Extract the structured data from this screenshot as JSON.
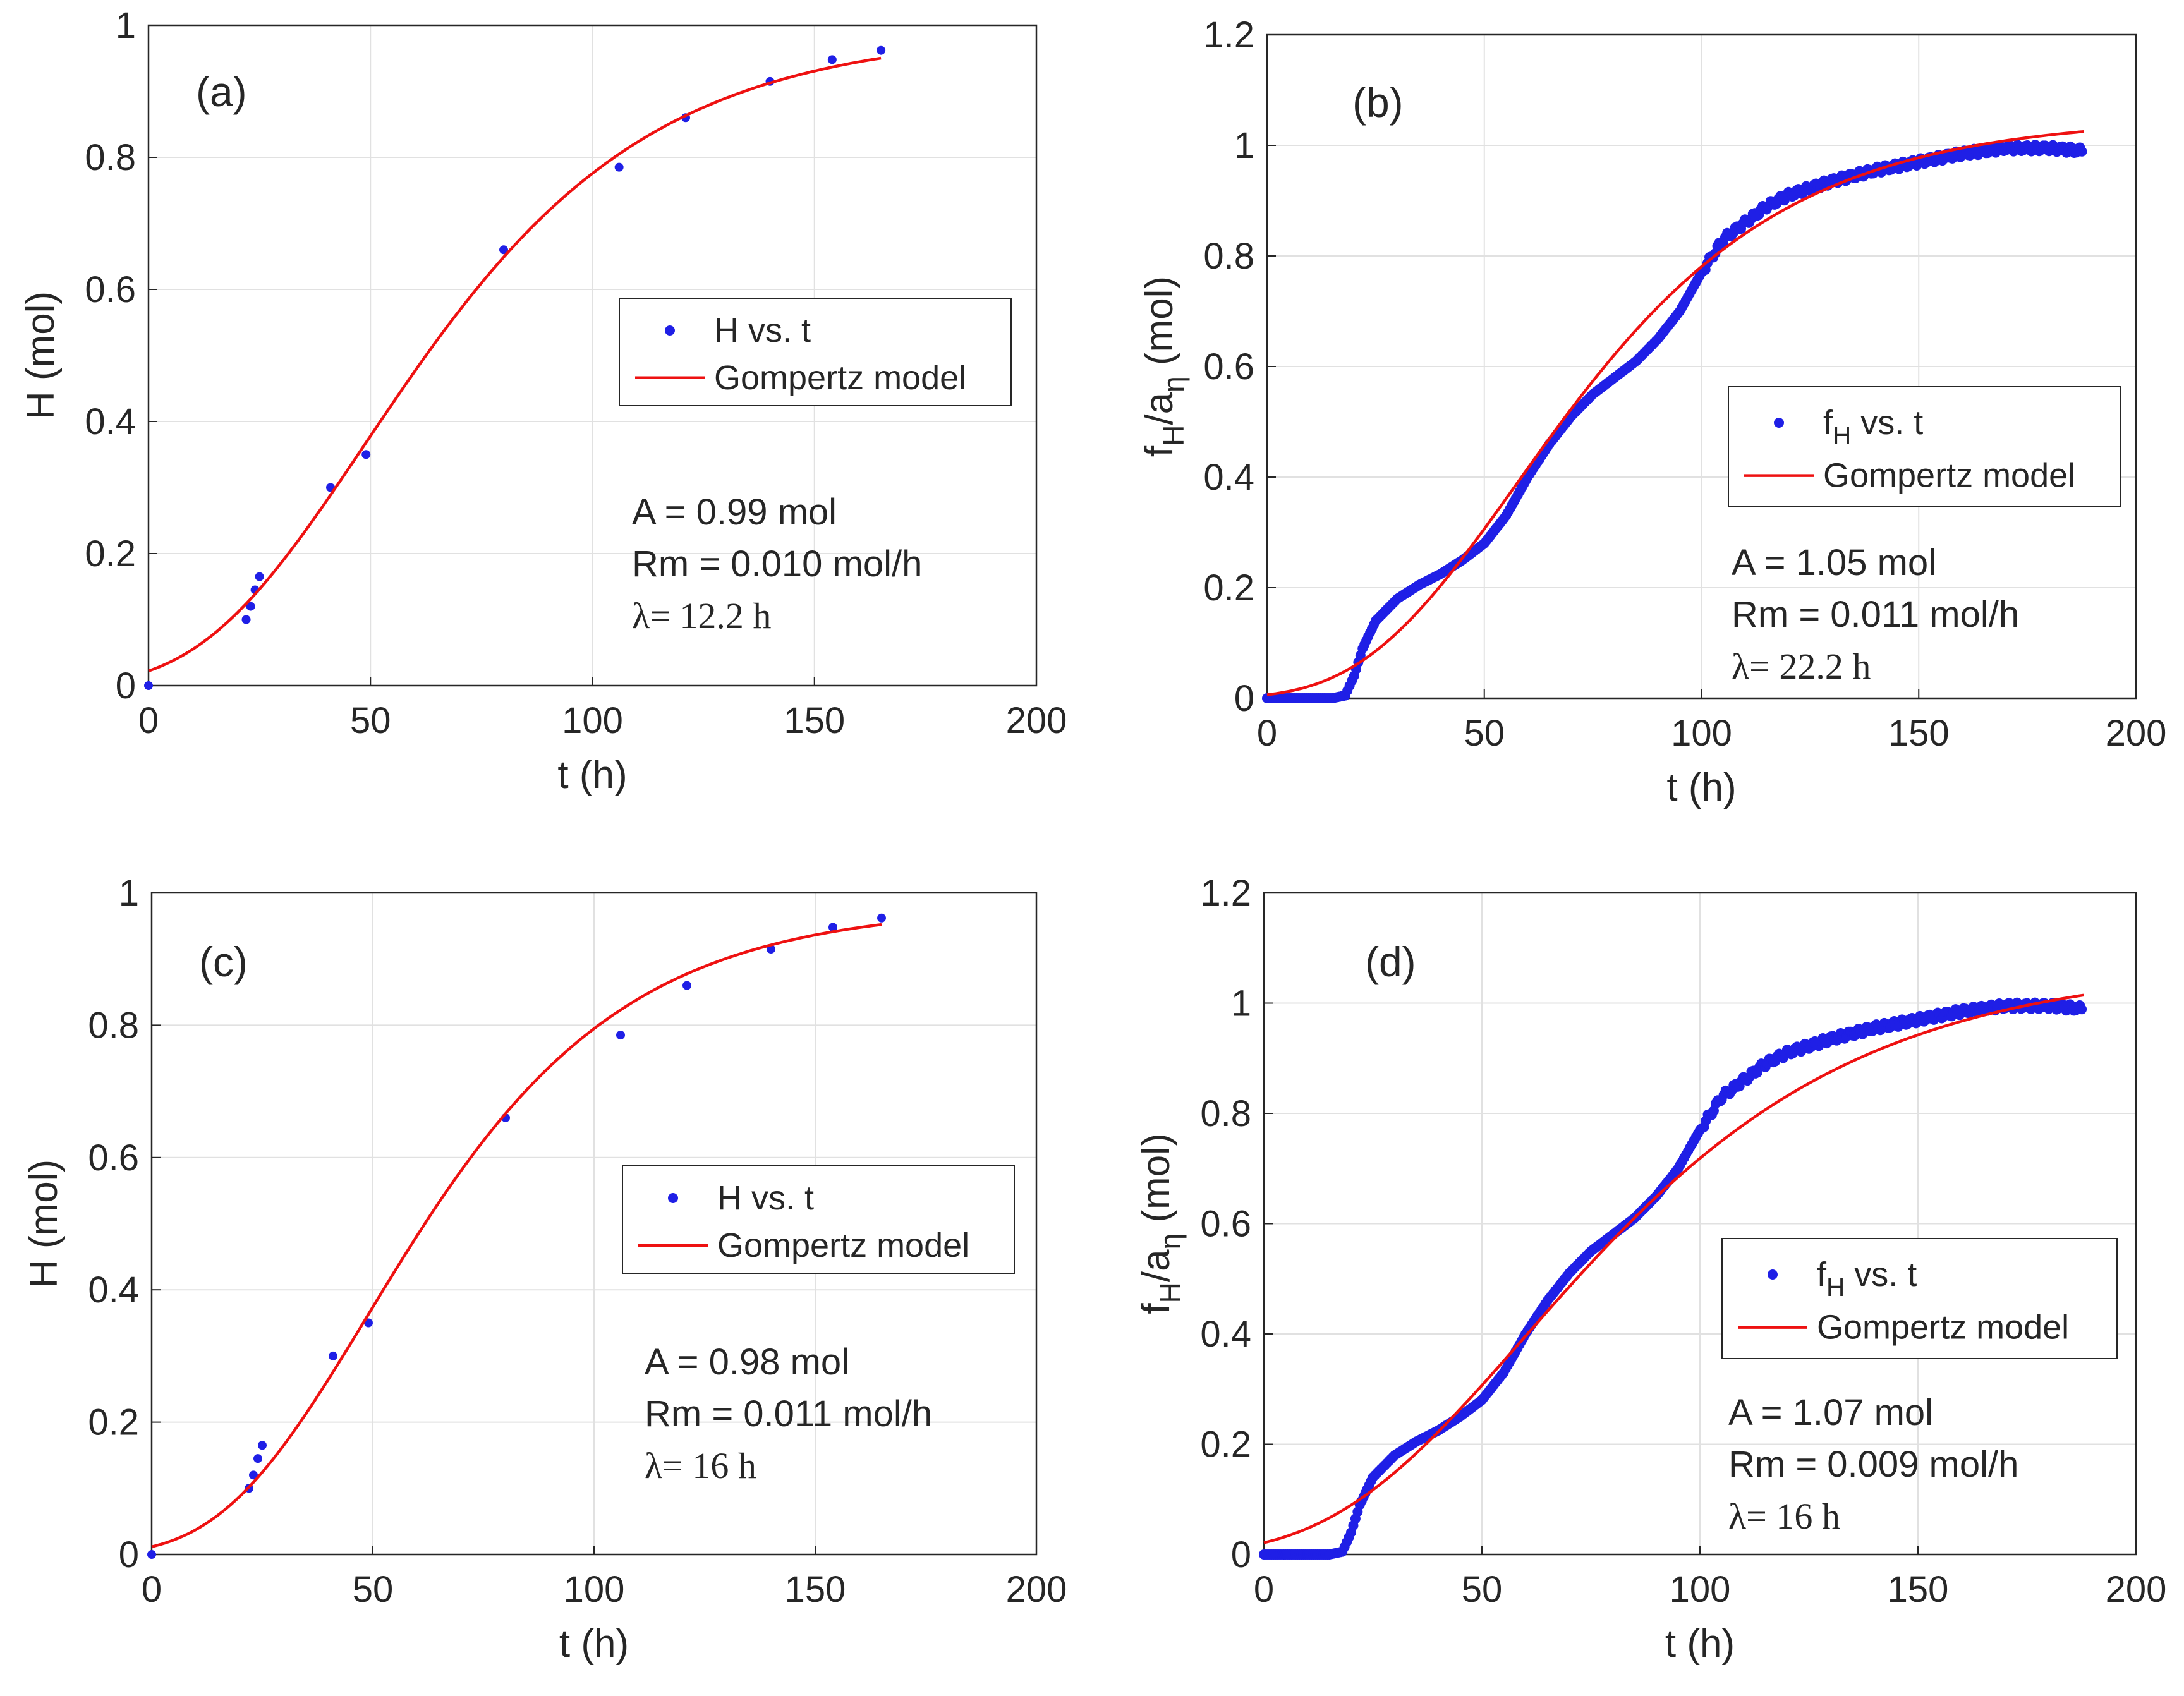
{
  "figure": {
    "colors": {
      "data": "#1f1fe6",
      "model": "#ee1111",
      "grid": "#e1e1e1",
      "axis": "#262626",
      "text": "#262626"
    }
  },
  "chart_data": [
    {
      "id": "a",
      "type": "scatter",
      "panel_label": "(a)",
      "xlabel": "t (h)",
      "ylabel": "H (mol)",
      "xlim": [
        0,
        200
      ],
      "ylim": [
        0,
        1
      ],
      "xticks": [
        "0",
        "50",
        "100",
        "150",
        "200"
      ],
      "yticks": [
        "0",
        "0.2",
        "0.4",
        "0.6",
        "0.8",
        "1"
      ],
      "grid": true,
      "legend": {
        "position": "middle-right",
        "entries": [
          "H vs. t",
          "Gompertz model"
        ]
      },
      "params": {
        "A": 0.99,
        "Rm": 0.01,
        "lambda": 12.2
      },
      "annotations": [
        "A = 0.99 mol",
        "Rm = 0.010 mol/h",
        "λ= 12.2 h"
      ],
      "series": [
        {
          "name": "H vs. t",
          "kind": "points",
          "x": [
            0,
            22,
            23,
            24,
            25,
            41,
            49,
            80,
            106,
            121,
            140,
            154,
            165
          ],
          "y": [
            0,
            0.1,
            0.12,
            0.145,
            0.165,
            0.3,
            0.35,
            0.66,
            0.785,
            0.86,
            0.915,
            0.948,
            0.962
          ]
        },
        {
          "name": "Gompertz model",
          "kind": "curve",
          "x_range": [
            0,
            165
          ]
        }
      ]
    },
    {
      "id": "b",
      "type": "scatter",
      "panel_label": "(b)",
      "xlabel": "t (h)",
      "ylabel": "f_H/a_η (mol)",
      "xlim": [
        0,
        200
      ],
      "ylim": [
        0,
        1.2
      ],
      "xticks": [
        "0",
        "50",
        "100",
        "150",
        "200"
      ],
      "yticks": [
        "0",
        "0.2",
        "0.4",
        "0.6",
        "0.8",
        "1",
        "1.2"
      ],
      "grid": true,
      "legend": {
        "position": "middle-right",
        "entries": [
          "f_H vs. t",
          "Gompertz model"
        ]
      },
      "params": {
        "A": 1.05,
        "Rm": 0.011,
        "lambda": 22.2
      },
      "annotations": [
        "A = 1.05 mol",
        "Rm = 0.011 mol/h",
        "λ= 22.2 h"
      ],
      "series": [
        {
          "name": "f_H vs. t",
          "kind": "dense",
          "x": [
            0,
            15,
            18,
            20,
            22,
            25,
            30,
            35,
            40,
            45,
            50,
            55,
            60,
            65,
            70,
            75,
            80,
            85,
            90,
            95,
            100,
            105,
            110,
            115,
            120,
            130,
            140,
            150,
            160,
            170,
            180,
            188
          ],
          "y": [
            0,
            0,
            0.005,
            0.04,
            0.09,
            0.14,
            0.18,
            0.205,
            0.225,
            0.25,
            0.28,
            0.33,
            0.4,
            0.46,
            0.51,
            0.55,
            0.58,
            0.61,
            0.65,
            0.7,
            0.77,
            0.83,
            0.86,
            0.89,
            0.91,
            0.935,
            0.955,
            0.97,
            0.985,
            0.995,
            0.995,
            0.99
          ]
        },
        {
          "name": "Gompertz model",
          "kind": "curve",
          "x_range": [
            0,
            188
          ]
        }
      ]
    },
    {
      "id": "c",
      "type": "scatter",
      "panel_label": "(c)",
      "xlabel": "t (h)",
      "ylabel": "H (mol)",
      "xlim": [
        0,
        200
      ],
      "ylim": [
        0,
        1
      ],
      "xticks": [
        "0",
        "50",
        "100",
        "150",
        "200"
      ],
      "yticks": [
        "0",
        "0.2",
        "0.4",
        "0.6",
        "0.8",
        "1"
      ],
      "grid": true,
      "legend": {
        "position": "middle-right",
        "entries": [
          "H vs. t",
          "Gompertz model"
        ]
      },
      "params": {
        "A": 0.98,
        "Rm": 0.011,
        "lambda": 16
      },
      "annotations": [
        "A = 0.98 mol",
        "Rm = 0.011 mol/h",
        "λ= 16 h"
      ],
      "series": [
        {
          "name": "H vs. t",
          "kind": "points",
          "x": [
            0,
            22,
            23,
            24,
            25,
            41,
            49,
            80,
            106,
            121,
            140,
            154,
            165
          ],
          "y": [
            0,
            0.1,
            0.12,
            0.145,
            0.165,
            0.3,
            0.35,
            0.66,
            0.785,
            0.86,
            0.915,
            0.948,
            0.962
          ]
        },
        {
          "name": "Gompertz model",
          "kind": "curve",
          "x_range": [
            0,
            165
          ]
        }
      ]
    },
    {
      "id": "d",
      "type": "scatter",
      "panel_label": "(d)",
      "xlabel": "t (h)",
      "ylabel": "f_H/a_η (mol)",
      "xlim": [
        0,
        200
      ],
      "ylim": [
        0,
        1.2
      ],
      "xticks": [
        "0",
        "50",
        "100",
        "150",
        "200"
      ],
      "yticks": [
        "0",
        "0.2",
        "0.4",
        "0.6",
        "0.8",
        "1",
        "1.2"
      ],
      "grid": true,
      "legend": {
        "position": "middle-right",
        "entries": [
          "f_H vs. t",
          "Gompertz model"
        ]
      },
      "params": {
        "A": 1.07,
        "Rm": 0.009,
        "lambda": 16
      },
      "annotations": [
        "A = 1.07 mol",
        "Rm = 0.009 mol/h",
        "λ= 16 h"
      ],
      "series": [
        {
          "name": "f_H vs. t",
          "kind": "dense",
          "x": [
            0,
            15,
            18,
            20,
            22,
            25,
            30,
            35,
            40,
            45,
            50,
            55,
            60,
            65,
            70,
            75,
            80,
            85,
            90,
            95,
            100,
            105,
            110,
            115,
            120,
            130,
            140,
            150,
            160,
            170,
            180,
            188
          ],
          "y": [
            0,
            0,
            0.005,
            0.04,
            0.09,
            0.14,
            0.18,
            0.205,
            0.225,
            0.25,
            0.28,
            0.33,
            0.4,
            0.46,
            0.51,
            0.55,
            0.58,
            0.61,
            0.65,
            0.7,
            0.77,
            0.83,
            0.86,
            0.89,
            0.91,
            0.935,
            0.955,
            0.97,
            0.985,
            0.995,
            0.995,
            0.99
          ]
        },
        {
          "name": "Gompertz model",
          "kind": "curve",
          "x_range": [
            0,
            188
          ]
        }
      ]
    }
  ]
}
